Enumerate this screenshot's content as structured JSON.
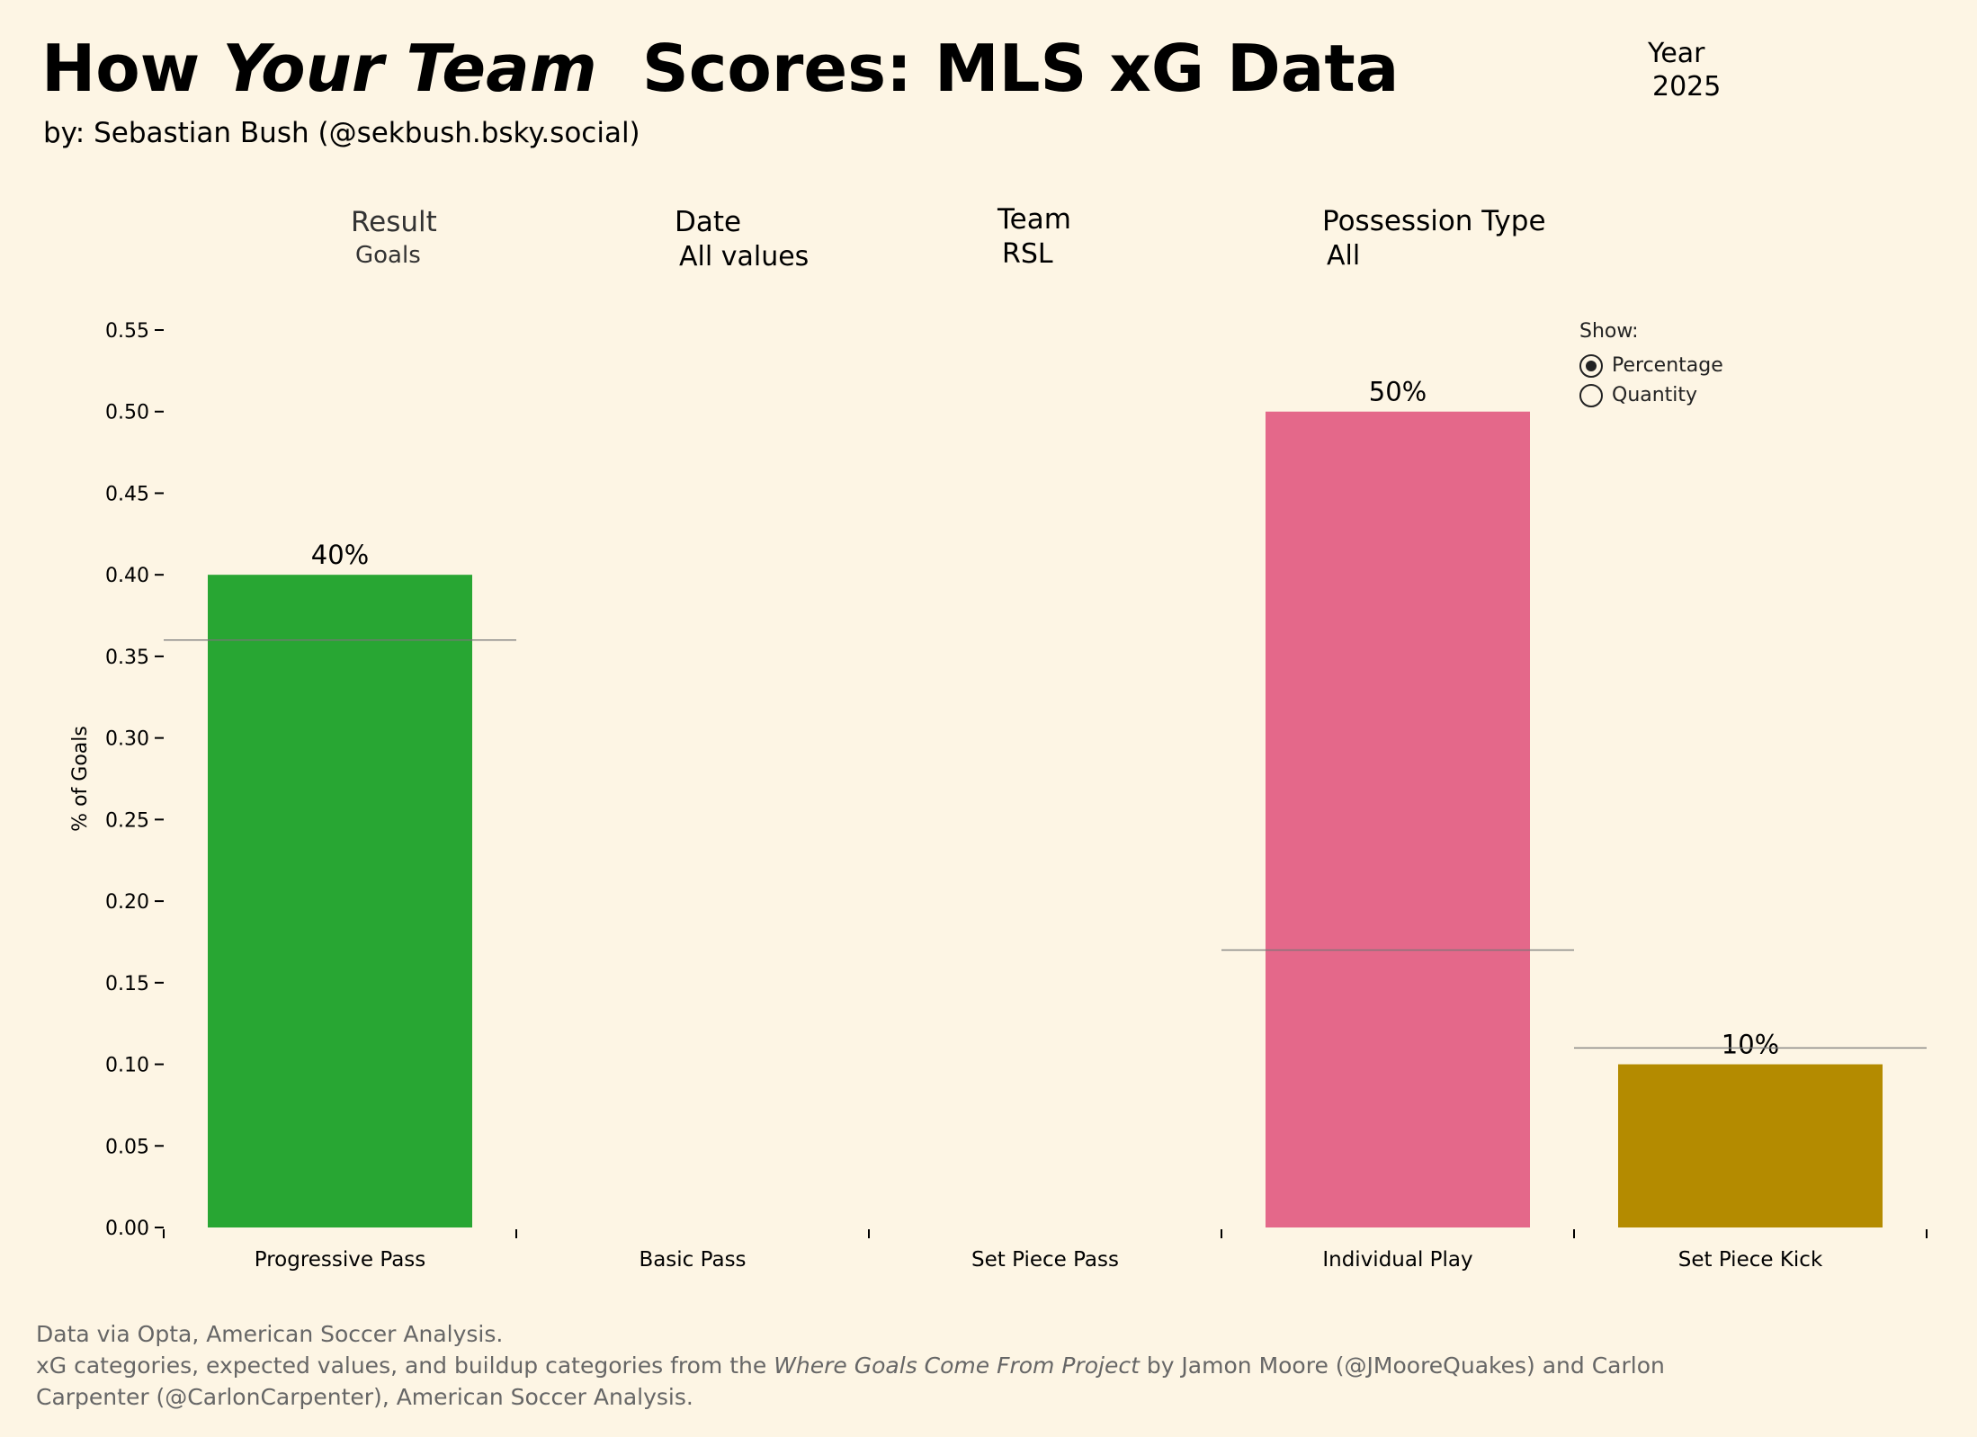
{
  "header": {
    "title_prefix": "How ",
    "title_emph": "Your Team",
    "title_suffix": "  Scores: MLS xG Data",
    "byline": "by: Sebastian Bush (@sekbush.bsky.social)",
    "year_label": "Year",
    "year_value": "2025"
  },
  "filters": {
    "result": {
      "label": "Result",
      "value": "Goals"
    },
    "date": {
      "label": "Date",
      "value": "All values"
    },
    "team": {
      "label": "Team",
      "value": "RSL"
    },
    "possession": {
      "label": "Possession Type",
      "value": "All"
    }
  },
  "show": {
    "label": "Show:",
    "options": [
      {
        "label": "Percentage",
        "selected": true
      },
      {
        "label": "Quantity",
        "selected": false
      }
    ]
  },
  "chart_data": {
    "type": "bar",
    "ylabel": "% of Goals",
    "ylim": [
      0,
      0.55
    ],
    "yticks": [
      "0.00",
      "0.05",
      "0.10",
      "0.15",
      "0.20",
      "0.25",
      "0.30",
      "0.35",
      "0.40",
      "0.45",
      "0.50",
      "0.55"
    ],
    "categories": [
      "Progressive Pass",
      "Basic Pass",
      "Set Piece Pass",
      "Individual Play",
      "Set Piece Kick"
    ],
    "values": [
      0.4,
      0,
      0,
      0.5,
      0.1
    ],
    "data_labels": [
      "40%",
      "",
      "",
      "50%",
      "10%"
    ],
    "expected_lines": [
      0.36,
      null,
      null,
      0.17,
      0.11
    ],
    "colors": [
      "#28a633",
      null,
      null,
      "#e4688a",
      "#b48b00"
    ]
  },
  "footer": {
    "line1": "Data via Opta, American Soccer Analysis.",
    "line2_prefix": "xG categories, expected values, and buildup categories from the ",
    "line2_emph": "Where Goals Come From Project",
    "line2_suffix": " by Jamon Moore (@JMooreQuakes) and Carlon",
    "line3": "Carpenter (@CarlonCarpenter), American Soccer Analysis."
  }
}
